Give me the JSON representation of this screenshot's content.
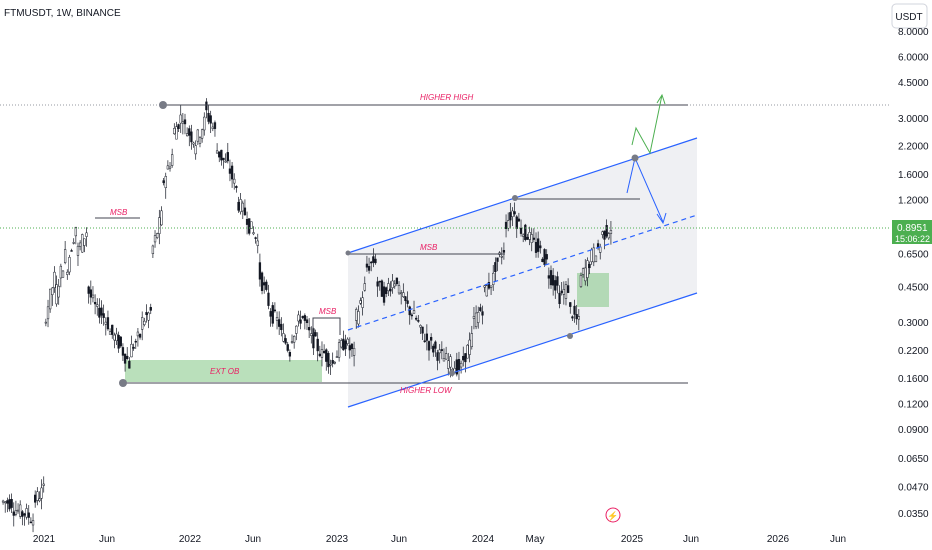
{
  "chart_data": {
    "type": "candlestick",
    "title": "FTMUSDT, 1W, BINANCE",
    "currency_button": "USDT",
    "y_scale": "log",
    "y_ticks": [
      "8.0000",
      "6.0000",
      "4.5000",
      "3.0000",
      "2.2000",
      "1.6000",
      "1.2000",
      "0.8951",
      "0.6500",
      "0.4500",
      "0.3000",
      "0.2200",
      "0.1600",
      "0.1200",
      "0.0900",
      "0.0650",
      "0.0470",
      "0.0350"
    ],
    "y_tick_values": [
      8.0,
      6.0,
      4.5,
      3.0,
      2.2,
      1.6,
      1.2,
      0.8951,
      0.65,
      0.45,
      0.3,
      0.22,
      0.16,
      0.12,
      0.09,
      0.065,
      0.047,
      0.035
    ],
    "x_ticks": [
      "2021",
      "Jun",
      "2022",
      "Jun",
      "2023",
      "Jun",
      "2024",
      "May",
      "2025",
      "Jun",
      "2026",
      "Jun"
    ],
    "current_price": "0.8951",
    "countdown": "15:06:22",
    "annotations": {
      "higher_high": "HIGHER HIGH",
      "higher_low": "HIGHER LOW",
      "msb": "MSB",
      "ext_ob": "EXT OB"
    },
    "price_path": [
      [
        0.04,
        0.04
      ],
      [
        0.038,
        0.035
      ],
      [
        0.036,
        0.033
      ],
      [
        0.04,
        0.046
      ],
      [
        0.3,
        0.5
      ],
      [
        0.4,
        0.65
      ],
      [
        0.52,
        0.9
      ],
      [
        0.65,
        0.85
      ],
      [
        0.45,
        0.34
      ],
      [
        0.36,
        0.3
      ],
      [
        0.28,
        0.24
      ],
      [
        0.24,
        0.19
      ],
      [
        0.22,
        0.26
      ],
      [
        0.3,
        0.34
      ],
      [
        0.65,
        1.0
      ],
      [
        1.4,
        2.0
      ],
      [
        2.5,
        3.2
      ],
      [
        2.8,
        2.4
      ],
      [
        2.2,
        2.9
      ],
      [
        3.4,
        2.6
      ],
      [
        2.2,
        1.8
      ],
      [
        1.9,
        1.35
      ],
      [
        1.2,
        1.0
      ],
      [
        0.95,
        0.75
      ],
      [
        0.55,
        0.38
      ],
      [
        0.35,
        0.3
      ],
      [
        0.28,
        0.22
      ],
      [
        0.25,
        0.32
      ],
      [
        0.34,
        0.25
      ],
      [
        0.26,
        0.21
      ],
      [
        0.22,
        0.19
      ],
      [
        0.2,
        0.24
      ],
      [
        0.25,
        0.21
      ],
      [
        0.3,
        0.45
      ],
      [
        0.55,
        0.62
      ],
      [
        0.48,
        0.4
      ],
      [
        0.45,
        0.5
      ],
      [
        0.44,
        0.36
      ],
      [
        0.36,
        0.3
      ],
      [
        0.28,
        0.24
      ],
      [
        0.24,
        0.21
      ],
      [
        0.21,
        0.19
      ],
      [
        0.19,
        0.18
      ],
      [
        0.19,
        0.25
      ],
      [
        0.3,
        0.36
      ],
      [
        0.42,
        0.5
      ],
      [
        0.55,
        0.7
      ],
      [
        0.9,
        1.1
      ],
      [
        1.0,
        0.8
      ],
      [
        0.85,
        0.7
      ],
      [
        0.72,
        0.6
      ],
      [
        0.55,
        0.45
      ],
      [
        0.4,
        0.45
      ],
      [
        0.36,
        0.3
      ],
      [
        0.48,
        0.6
      ],
      [
        0.62,
        0.72
      ],
      [
        0.8,
        0.89
      ]
    ]
  }
}
